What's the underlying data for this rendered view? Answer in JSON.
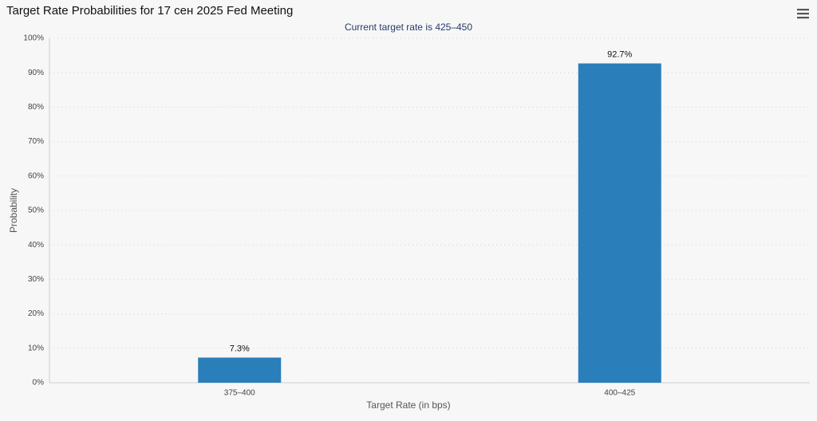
{
  "chart_data": {
    "type": "bar",
    "title": "Target Rate Probabilities for 17 сен 2025 Fed Meeting",
    "subtitle": "Current target rate is 425–450",
    "x_label": "Target Rate (in bps)",
    "y_label": "Probability",
    "categories": [
      "375–400",
      "400–425"
    ],
    "values": [
      7.3,
      92.7
    ],
    "value_labels": [
      "7.3%",
      "92.7%"
    ],
    "color": "#2a7fba",
    "ylim": [
      0,
      100
    ],
    "yticks": [
      {
        "value": 0,
        "label": "0%"
      },
      {
        "value": 10,
        "label": "10%"
      },
      {
        "value": 20,
        "label": "20%"
      },
      {
        "value": 30,
        "label": "30%"
      },
      {
        "value": 40,
        "label": "40%"
      },
      {
        "value": 50,
        "label": "50%"
      },
      {
        "value": 60,
        "label": "60%"
      },
      {
        "value": 70,
        "label": "70%"
      },
      {
        "value": 80,
        "label": "80%"
      },
      {
        "value": 90,
        "label": "90%"
      },
      {
        "value": 100,
        "label": "100%"
      }
    ],
    "grid": true
  }
}
